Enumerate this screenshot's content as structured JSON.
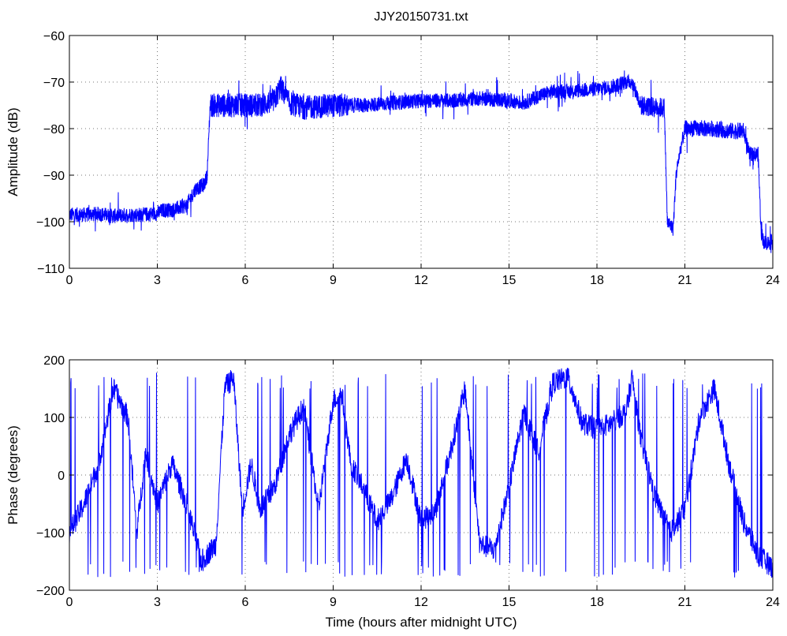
{
  "chart_data": [
    {
      "type": "line",
      "title": "JJY20150731.txt",
      "xlabel": "",
      "ylabel": "Amplitude (dB)",
      "xlim": [
        0,
        24
      ],
      "ylim": [
        -110,
        -60
      ],
      "xticks": [
        0,
        3,
        6,
        9,
        12,
        15,
        18,
        21,
        24
      ],
      "yticks": [
        -110,
        -100,
        -90,
        -80,
        -70,
        -60
      ],
      "xtick_labels": [
        "0",
        "3",
        "6",
        "9",
        "12",
        "15",
        "18",
        "21",
        "24"
      ],
      "ytick_labels": [
        "−110",
        "−100",
        "−90",
        "−80",
        "−70",
        "−60"
      ],
      "grid": true,
      "color": "#0000ff",
      "series": [
        {
          "x": [
            0,
            0.5,
            1,
            1.5,
            2,
            2.5,
            3,
            3.2,
            3.5,
            4,
            4.3,
            4.6,
            4.7,
            4.8,
            5,
            5.5,
            6,
            6.5,
            7,
            7.2,
            7.5,
            8,
            9,
            10,
            11,
            12,
            13,
            14,
            15,
            15.5,
            16,
            16.5,
            17,
            18,
            18.5,
            19,
            19.2,
            19.5,
            20,
            20.3,
            20.4,
            20.6,
            20.7,
            20.8,
            21,
            22,
            22.5,
            23,
            23.2,
            23.5,
            23.6,
            23.7,
            24
          ],
          "y": [
            -98.5,
            -98.5,
            -98.3,
            -98.8,
            -98.5,
            -98.5,
            -98.2,
            -97.5,
            -97.5,
            -96.5,
            -93,
            -92,
            -90,
            -75,
            -75,
            -75,
            -75,
            -75,
            -74,
            -71,
            -74.5,
            -75.5,
            -75,
            -75,
            -74.5,
            -74,
            -74,
            -73.5,
            -74,
            -74.5,
            -73,
            -72,
            -72,
            -71.5,
            -71,
            -70,
            -70,
            -75,
            -75.5,
            -75.5,
            -100,
            -101.5,
            -90,
            -86,
            -80,
            -80,
            -80.5,
            -80.5,
            -85.5,
            -85.5,
            -102,
            -104.5,
            -104.5
          ]
        }
      ]
    },
    {
      "type": "line",
      "title": "",
      "xlabel": "Time (hours after midnight UTC)",
      "ylabel": "Phase (degrees)",
      "xlim": [
        0,
        24
      ],
      "ylim": [
        -200,
        200
      ],
      "xticks": [
        0,
        3,
        6,
        9,
        12,
        15,
        18,
        21,
        24
      ],
      "yticks": [
        -200,
        -100,
        0,
        100,
        200
      ],
      "xtick_labels": [
        "0",
        "3",
        "6",
        "9",
        "12",
        "15",
        "18",
        "21",
        "24"
      ],
      "ytick_labels": [
        "−200",
        "−100",
        "0",
        "100",
        "200"
      ],
      "grid": true,
      "color": "#0000ff",
      "series": [
        {
          "x": [
            0,
            0.5,
            1,
            1.5,
            2,
            2.3,
            2.6,
            3,
            3.5,
            4,
            4.5,
            5,
            5.3,
            5.6,
            5.9,
            6.2,
            6.5,
            7,
            7.5,
            8,
            8.5,
            9,
            9.3,
            9.6,
            10,
            10.5,
            11,
            11.5,
            12,
            12.5,
            13,
            13.5,
            14,
            14.5,
            15,
            15.5,
            16,
            16.5,
            17,
            17.5,
            18,
            18.5,
            19,
            19.2,
            19.5,
            20,
            20.5,
            21,
            21.5,
            22,
            22.5,
            23,
            23.5,
            24
          ],
          "y": [
            -100,
            -50,
            20,
            150,
            100,
            -100,
            40,
            -50,
            20,
            -50,
            -150,
            -120,
            150,
            170,
            -60,
            20,
            -60,
            -20,
            70,
            120,
            -60,
            130,
            140,
            20,
            -20,
            -80,
            -40,
            30,
            -80,
            -60,
            40,
            150,
            -120,
            -130,
            -20,
            110,
            40,
            160,
            170,
            90,
            80,
            90,
            110,
            170,
            60,
            -40,
            -100,
            -60,
            100,
            150,
            20,
            -80,
            -140,
            -160
          ]
        }
      ]
    }
  ]
}
